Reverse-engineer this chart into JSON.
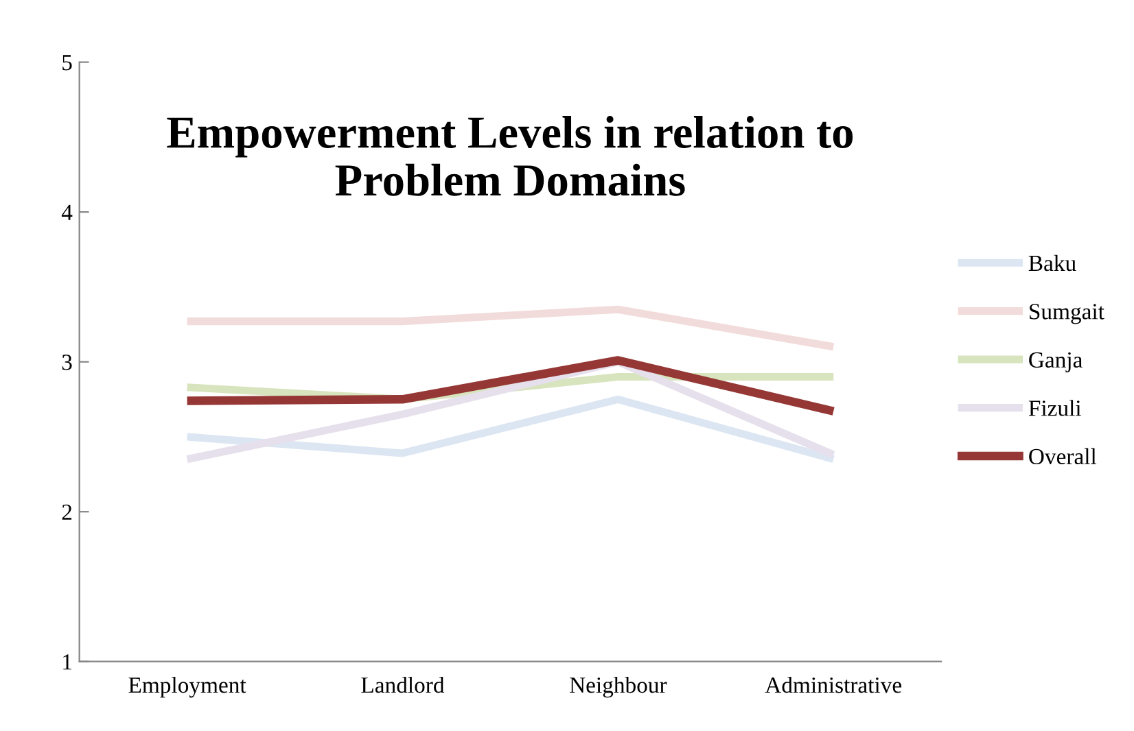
{
  "chart_data": {
    "type": "line",
    "title": "Empowerment Levels in relation to\nProblem Domains",
    "categories": [
      "Employment",
      "Landlord",
      "Neighbour",
      "Administrative"
    ],
    "series": [
      {
        "name": "Baku",
        "color": "#dce6f2",
        "values": [
          2.5,
          2.39,
          2.75,
          2.35
        ]
      },
      {
        "name": "Sumgait",
        "color": "#f2dcdb",
        "values": [
          3.27,
          3.27,
          3.35,
          3.1
        ]
      },
      {
        "name": "Ganja",
        "color": "#d7e4bd",
        "values": [
          2.83,
          2.75,
          2.9,
          2.9
        ]
      },
      {
        "name": "Fizuli",
        "color": "#e6e0ec",
        "values": [
          2.35,
          2.65,
          3.0,
          2.38
        ]
      },
      {
        "name": "Overall",
        "color": "#953735",
        "values": [
          2.74,
          2.75,
          3.01,
          2.67
        ]
      }
    ],
    "ylim": [
      1,
      5
    ],
    "yticks": [
      1,
      2,
      3,
      4,
      5
    ],
    "grid": false,
    "legend": "right",
    "marker": "none",
    "line_style": "solid"
  }
}
